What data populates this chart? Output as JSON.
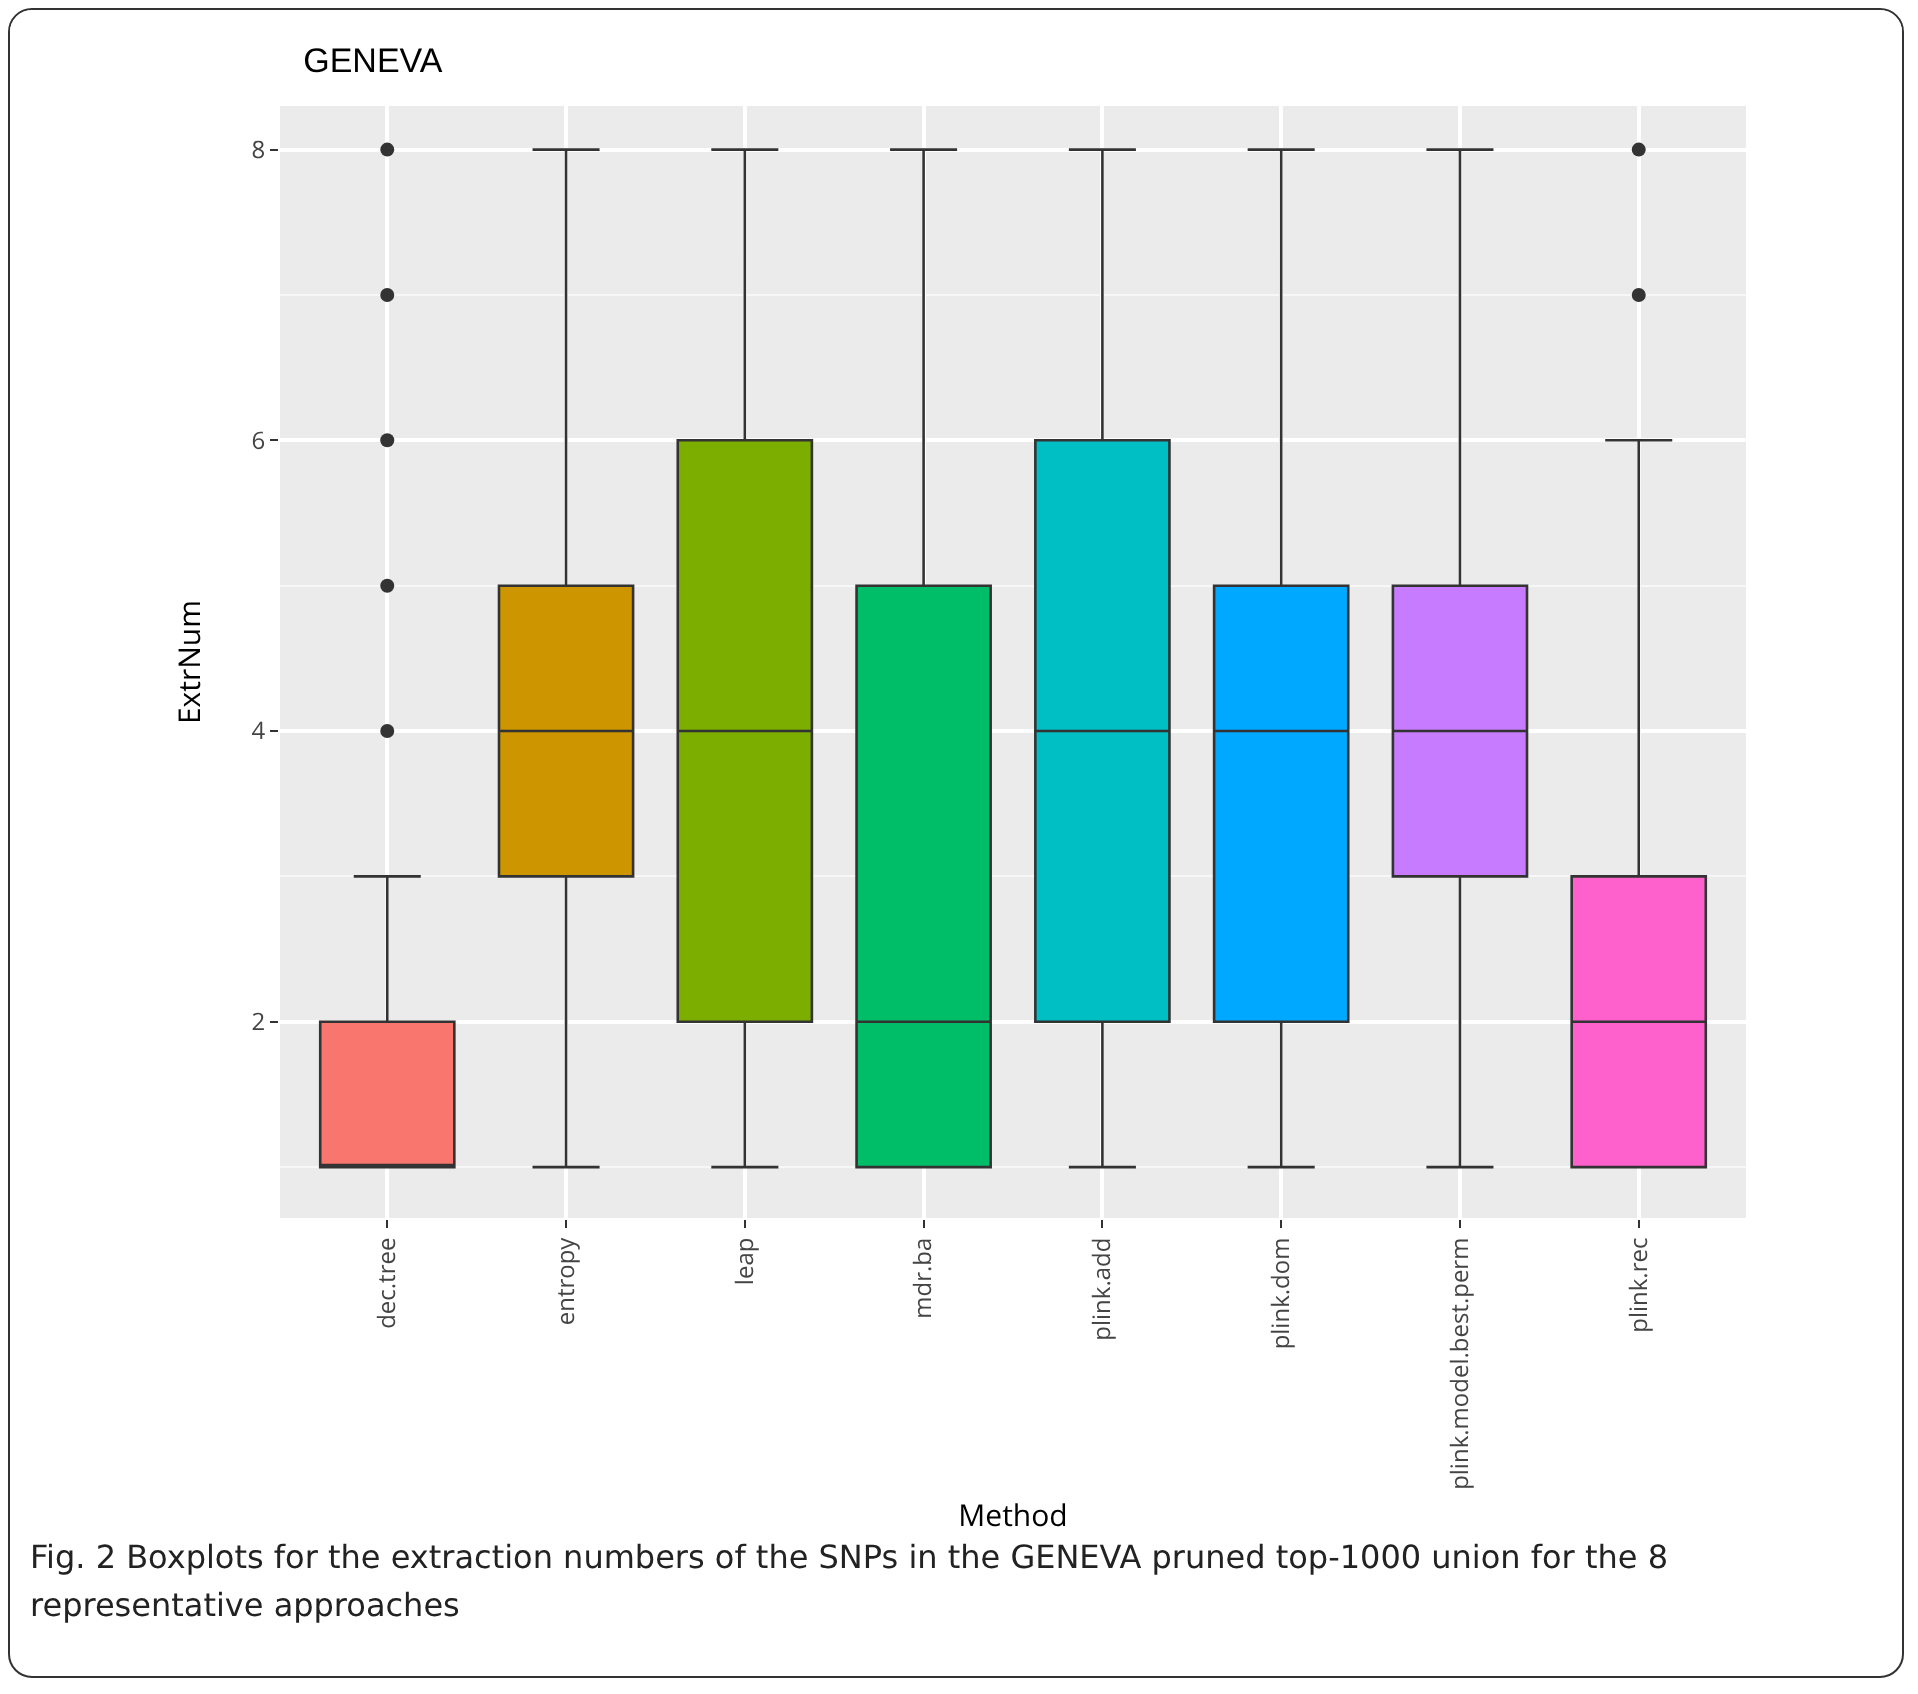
{
  "chart_data": {
    "type": "box",
    "title": "GENEVA",
    "xlabel": "Method",
    "ylabel": "ExtrNum",
    "categories": [
      "dec.tree",
      "entropy",
      "leap",
      "mdr.ba",
      "plink.add",
      "plink.dom",
      "plink.model.best.perm",
      "plink.rec"
    ],
    "colors": [
      "#f8766d",
      "#cd9600",
      "#7cae00",
      "#00be67",
      "#00bfc4",
      "#00a9ff",
      "#c77cff",
      "#ff61cc"
    ],
    "boxes": [
      {
        "low": 1,
        "q1": 1,
        "median": 1,
        "q3": 2,
        "high": 3,
        "outliers": [
          4,
          5,
          6,
          7,
          8
        ]
      },
      {
        "low": 1,
        "q1": 3,
        "median": 4,
        "q3": 5,
        "high": 8
      },
      {
        "low": 1,
        "q1": 2,
        "median": 4,
        "q3": 6,
        "high": 8
      },
      {
        "low": 1,
        "q1": 1,
        "median": 2,
        "q3": 5,
        "high": 8
      },
      {
        "low": 1,
        "q1": 2,
        "median": 4,
        "q3": 6,
        "high": 8
      },
      {
        "low": 1,
        "q1": 2,
        "median": 4,
        "q3": 5,
        "high": 8
      },
      {
        "low": 1,
        "q1": 3,
        "median": 4,
        "q3": 5,
        "high": 8
      },
      {
        "low": 1,
        "q1": 1,
        "median": 2,
        "q3": 3,
        "high": 6,
        "outliers": [
          7,
          8
        ]
      }
    ],
    "ylim": [
      0.65,
      8.3
    ],
    "yticks": [
      2,
      4,
      6,
      8
    ],
    "grid": true,
    "annotations": [
      "Fig. 2 Boxplots for the extraction numbers of the SNPs in the GENEVA pruned top-1000 union for the 8 representative approaches"
    ]
  }
}
